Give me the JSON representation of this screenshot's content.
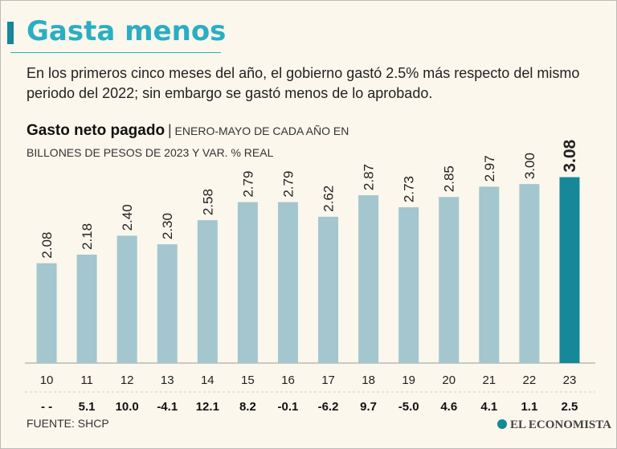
{
  "chart_data": {
    "type": "bar",
    "title": "Gasta menos",
    "description": "En los primeros cinco meses del año, el gobierno gastó 2.5% más respecto del mismo periodo del 2022; sin embargo se gastó menos de lo aprobado.",
    "subtitle": "Gasto neto pagado",
    "unit_note": "ENERO-MAYO DE CADA AÑO EN BILLONES DE PESOS DE 2023 Y VAR. % REAL",
    "categories": [
      "10",
      "11",
      "12",
      "13",
      "14",
      "15",
      "16",
      "17",
      "18",
      "19",
      "20",
      "21",
      "22",
      "23"
    ],
    "values": [
      2.08,
      2.18,
      2.4,
      2.3,
      2.58,
      2.79,
      2.79,
      2.62,
      2.87,
      2.73,
      2.85,
      2.97,
      3.0,
      3.08
    ],
    "value_labels": [
      "2.08",
      "2.18",
      "2.40",
      "2.30",
      "2.58",
      "2.79",
      "2.79",
      "2.62",
      "2.87",
      "2.73",
      "2.85",
      "2.97",
      "3.00",
      "3.08"
    ],
    "colors": [
      "#a3c6cf",
      "#a3c6cf",
      "#a3c6cf",
      "#a3c6cf",
      "#a3c6cf",
      "#a3c6cf",
      "#a3c6cf",
      "#a3c6cf",
      "#a3c6cf",
      "#a3c6cf",
      "#a3c6cf",
      "#a3c6cf",
      "#a3c6cf",
      "#17879a"
    ],
    "real_change": {
      "values": [
        null,
        5.1,
        10.0,
        -4.1,
        12.1,
        8.2,
        -0.1,
        -6.2,
        9.7,
        -5.0,
        4.6,
        4.1,
        1.1,
        2.5
      ],
      "value_labels": [
        "- -",
        "5.1",
        "10.0",
        "-4.1",
        "12.1",
        "8.2",
        "-0.1",
        "-6.2",
        "9.7",
        "-5.0",
        "4.6",
        "4.1",
        "1.1",
        "2.5"
      ]
    },
    "ylim": [
      0.92,
      3.3
    ],
    "source": "FUENTE: SHCP",
    "brand": "EL ECONOMISTA"
  }
}
